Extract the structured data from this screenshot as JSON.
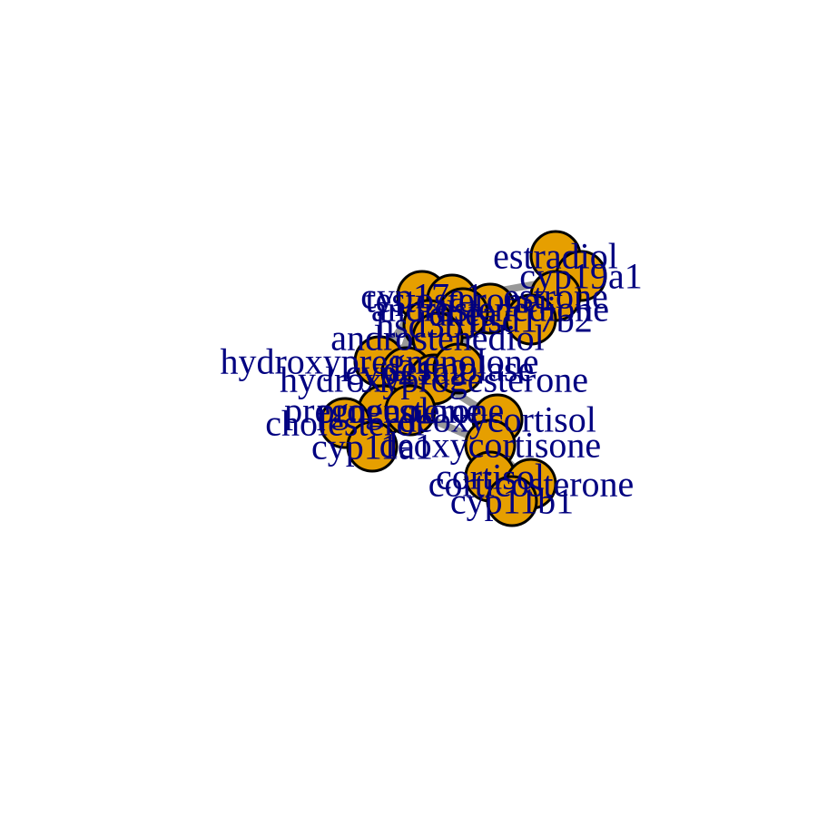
{
  "graph": {
    "node_color": "#E69F00",
    "node_border_color": "#000000",
    "edge_color": "#999999",
    "label_color": "#000080",
    "nodes": [
      {
        "id": "estradiol",
        "label": "estradiol"
      },
      {
        "id": "cyp19a1",
        "label": "cyp19a1"
      },
      {
        "id": "estrone",
        "label": "estrone"
      },
      {
        "id": "cyp17a1",
        "label": "cyp17a1"
      },
      {
        "id": "testosterone",
        "label": "testosterone"
      },
      {
        "id": "androstenedione",
        "label": "androstenedione"
      },
      {
        "id": "dhea",
        "label": "dhea"
      },
      {
        "id": "hsd17b2",
        "label": "hsd17b2"
      },
      {
        "id": "hsd3b1",
        "label": "hsd3b1"
      },
      {
        "id": "androstenediol",
        "label": "androstenediol"
      },
      {
        "id": "hydroxypregnenolone",
        "label": "hydroxypregnenolone"
      },
      {
        "id": "cyp21a2",
        "label": "cyp21a2"
      },
      {
        "id": "hydroxyprogesterone",
        "label": "hydroxyprogesterone"
      },
      {
        "id": "desmolase",
        "label": "desmolase"
      },
      {
        "id": "pregnenolone",
        "label": "pregnenolone"
      },
      {
        "id": "progesterone",
        "label": "progesterone"
      },
      {
        "id": "cholesterol",
        "label": "cholesterol"
      },
      {
        "id": "deoxycortisol",
        "label": "deoxycortisol"
      },
      {
        "id": "cyp11a1",
        "label": "cyp11a1"
      },
      {
        "id": "deoxycortisone",
        "label": "deoxycortisone"
      },
      {
        "id": "cortisol",
        "label": "cortisol"
      },
      {
        "id": "corticosterone",
        "label": "corticosterone"
      },
      {
        "id": "cyp11b1",
        "label": "cyp11b1"
      }
    ],
    "edges": [
      [
        "cholesterol",
        "cyp11a1"
      ],
      [
        "cyp11a1",
        "pregnenolone"
      ],
      [
        "pregnenolone",
        "desmolase"
      ],
      [
        "desmolase",
        "progesterone"
      ],
      [
        "pregnenolone",
        "hsd3b1"
      ],
      [
        "hsd3b1",
        "progesterone"
      ],
      [
        "pregnenolone",
        "cyp17a1"
      ],
      [
        "cyp17a1",
        "hydroxypregnenolone"
      ],
      [
        "hydroxypregnenolone",
        "dhea"
      ],
      [
        "progesterone",
        "cyp21a2"
      ],
      [
        "cyp21a2",
        "hydroxyprogesterone"
      ],
      [
        "hydroxyprogesterone",
        "androstenedione"
      ],
      [
        "dhea",
        "androstenedione"
      ],
      [
        "dhea",
        "androstenediol"
      ],
      [
        "androstenediol",
        "testosterone"
      ],
      [
        "androstenedione",
        "testosterone"
      ],
      [
        "androstenedione",
        "hsd17b2"
      ],
      [
        "hsd17b2",
        "estrone"
      ],
      [
        "androstenedione",
        "estrone"
      ],
      [
        "testosterone",
        "cyp19a1"
      ],
      [
        "cyp19a1",
        "estradiol"
      ],
      [
        "estrone",
        "estradiol"
      ],
      [
        "hydroxyprogesterone",
        "deoxycortisol"
      ],
      [
        "progesterone",
        "deoxycortisone"
      ],
      [
        "deoxycortisol",
        "cyp11b1"
      ],
      [
        "cyp11b1",
        "cortisol"
      ],
      [
        "deoxycortisone",
        "corticosterone"
      ],
      [
        "corticosterone",
        "cortisol"
      ]
    ]
  }
}
